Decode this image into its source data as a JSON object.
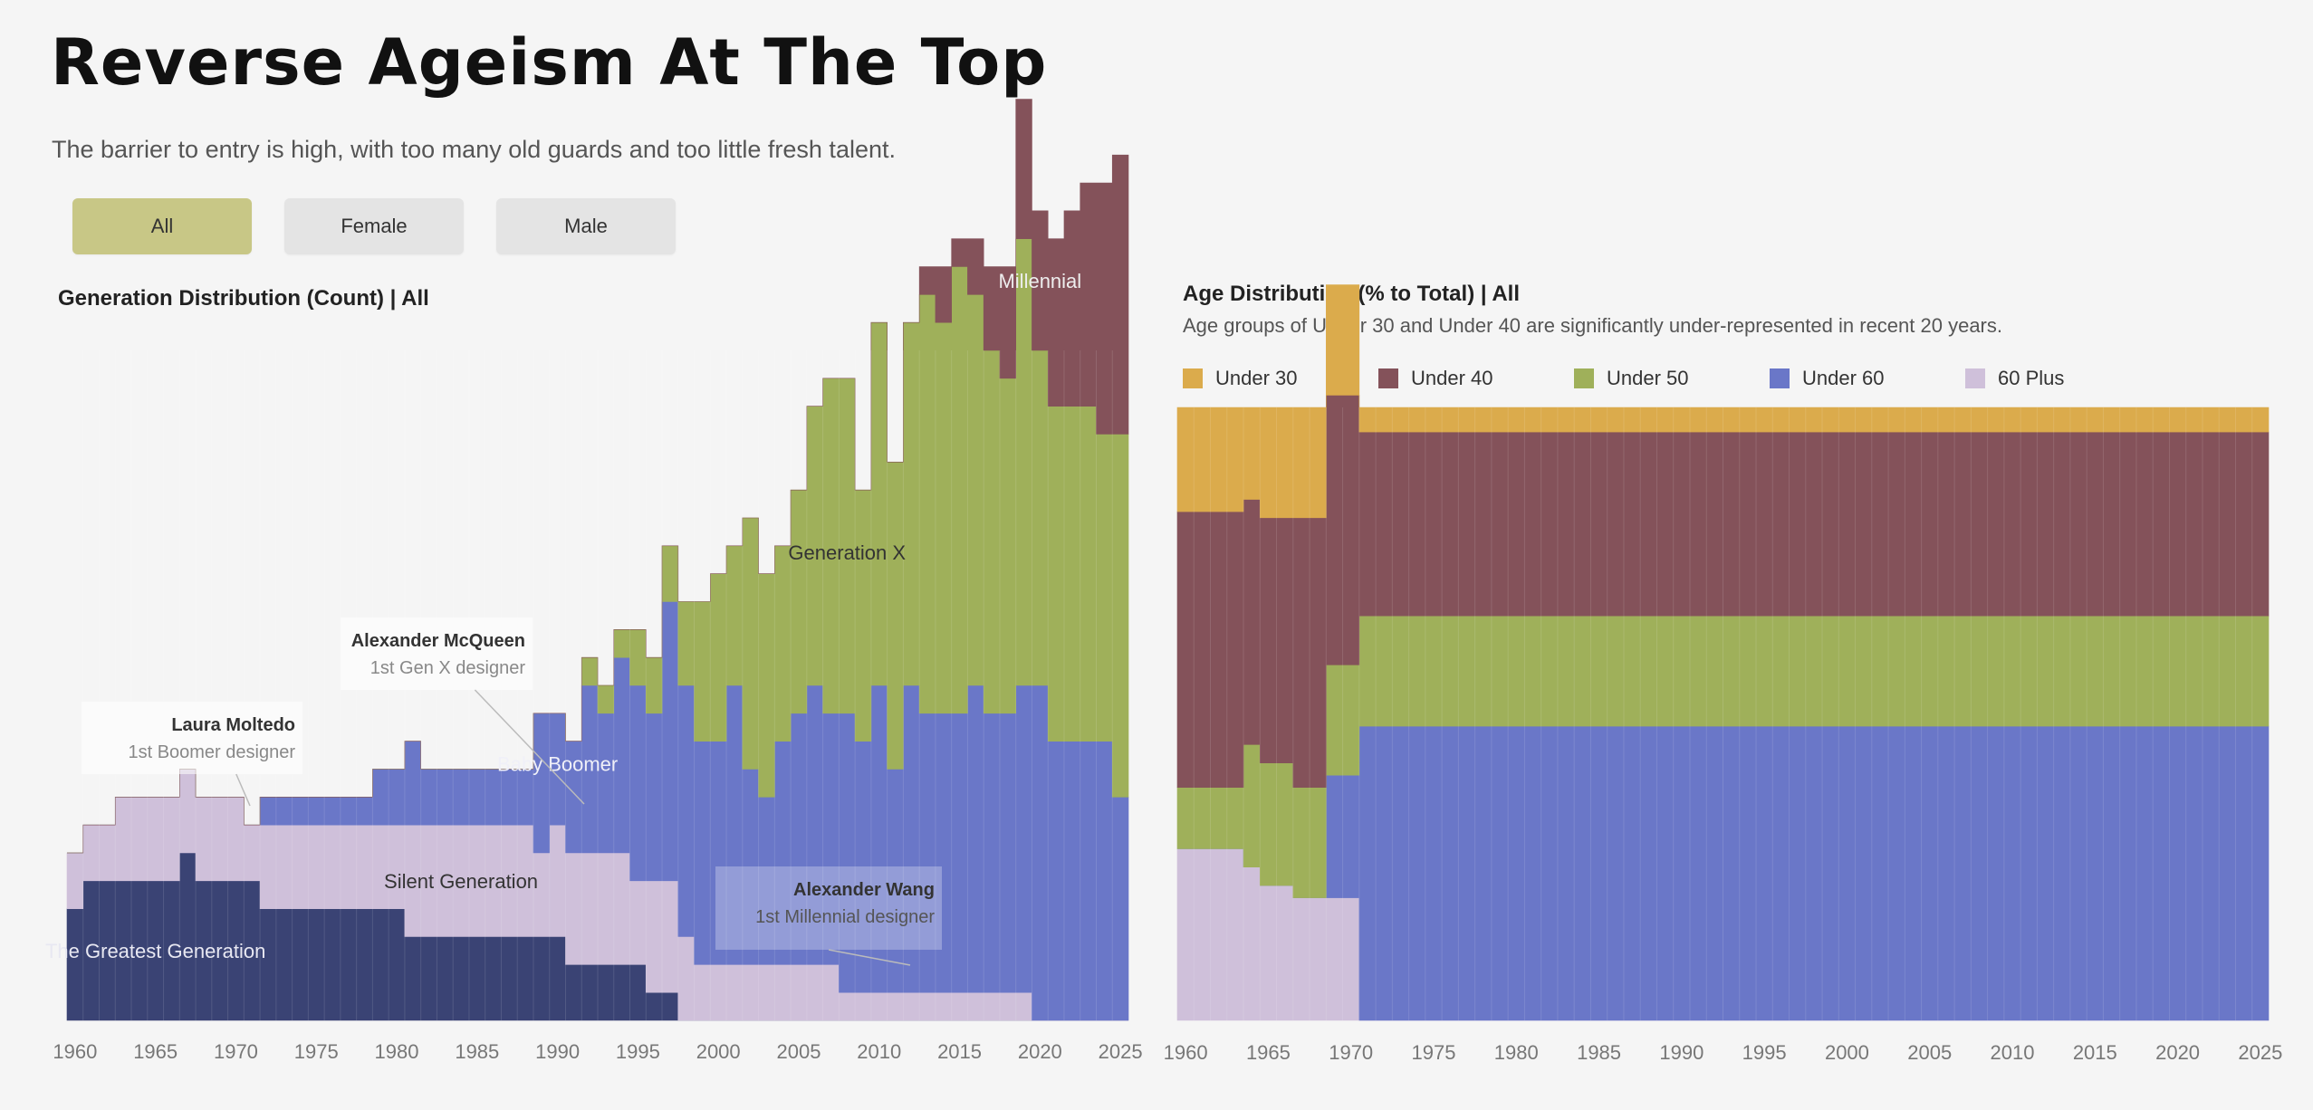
{
  "page": {
    "title": "Reverse Ageism At The Top",
    "subtitle": "The barrier to entry is high, with too many old guards and too little fresh talent."
  },
  "filters": {
    "items": [
      {
        "label": "All",
        "active": true
      },
      {
        "label": "Female",
        "active": false
      },
      {
        "label": "Male",
        "active": false
      }
    ]
  },
  "colors": {
    "greatest": "#3a4374",
    "silent": "#cfc0da",
    "boomer": "#6a77c8",
    "genx": "#9fb05a",
    "millennial": "#84525a",
    "under30": "#dbab4c",
    "under40": "#84525a",
    "under50": "#9fb05a",
    "under60": "#6a77c8",
    "plus60": "#cfc0da"
  },
  "chart_data": [
    {
      "type": "area",
      "title": "Generation Distribution (Count) | All",
      "xlabel": "",
      "ylabel": "",
      "xlim": [
        1960,
        2025
      ],
      "ylim": [
        0,
        24
      ],
      "x_ticks": [
        1960,
        1965,
        1970,
        1975,
        1980,
        1985,
        1990,
        1995,
        2000,
        2005,
        2010,
        2015,
        2020,
        2025
      ],
      "x": [
        1960,
        1961,
        1962,
        1963,
        1964,
        1965,
        1966,
        1967,
        1968,
        1969,
        1970,
        1971,
        1972,
        1973,
        1974,
        1975,
        1976,
        1977,
        1978,
        1979,
        1980,
        1981,
        1982,
        1983,
        1984,
        1985,
        1986,
        1987,
        1988,
        1989,
        1990,
        1991,
        1992,
        1993,
        1994,
        1995,
        1996,
        1997,
        1998,
        1999,
        2000,
        2001,
        2002,
        2003,
        2004,
        2005,
        2006,
        2007,
        2008,
        2009,
        2010,
        2011,
        2012,
        2013,
        2014,
        2015,
        2016,
        2017,
        2018,
        2019,
        2020,
        2021,
        2022,
        2023,
        2024,
        2025
      ],
      "series": [
        {
          "name": "The Greatest Generation",
          "color_key": "greatest",
          "values": [
            4,
            5,
            5,
            5,
            5,
            5,
            5,
            6,
            5,
            5,
            5,
            5,
            4,
            4,
            4,
            4,
            4,
            4,
            4,
            4,
            4,
            3,
            3,
            3,
            3,
            3,
            3,
            3,
            3,
            3,
            3,
            2,
            2,
            2,
            2,
            2,
            1,
            1,
            0,
            0,
            0,
            0,
            0,
            0,
            0,
            0,
            0,
            0,
            0,
            0,
            0,
            0,
            0,
            0,
            0,
            0,
            0,
            0,
            0,
            0,
            0,
            0,
            0,
            0,
            0,
            0
          ]
        },
        {
          "name": "Silent Generation",
          "color_key": "silent",
          "values": [
            2,
            2,
            2,
            3,
            3,
            3,
            3,
            3,
            3,
            3,
            3,
            2,
            3,
            3,
            3,
            3,
            3,
            3,
            3,
            3,
            3,
            4,
            4,
            4,
            4,
            4,
            4,
            4,
            4,
            3,
            4,
            4,
            4,
            4,
            4,
            3,
            4,
            4,
            3,
            2,
            2,
            2,
            2,
            2,
            2,
            2,
            2,
            2,
            1,
            1,
            1,
            1,
            1,
            1,
            1,
            1,
            1,
            1,
            1,
            1,
            0,
            0,
            0,
            0,
            0,
            0
          ]
        },
        {
          "name": "Baby Boomer",
          "color_key": "boomer",
          "values": [
            0,
            0,
            0,
            0,
            0,
            0,
            0,
            0,
            0,
            0,
            0,
            0,
            1,
            1,
            1,
            1,
            1,
            1,
            1,
            2,
            2,
            3,
            2,
            2,
            2,
            2,
            2,
            2,
            2,
            5,
            4,
            4,
            6,
            5,
            7,
            7,
            6,
            10,
            9,
            8,
            8,
            10,
            7,
            6,
            8,
            9,
            10,
            9,
            10,
            9,
            11,
            8,
            11,
            10,
            10,
            10,
            11,
            10,
            10,
            11,
            12,
            10,
            10,
            10,
            10,
            8
          ]
        },
        {
          "name": "Generation X",
          "color_key": "genx",
          "values": [
            0,
            0,
            0,
            0,
            0,
            0,
            0,
            0,
            0,
            0,
            0,
            0,
            0,
            0,
            0,
            0,
            0,
            0,
            0,
            0,
            0,
            0,
            0,
            0,
            0,
            0,
            0,
            0,
            0,
            0,
            0,
            0,
            1,
            1,
            1,
            2,
            2,
            2,
            3,
            5,
            6,
            5,
            9,
            8,
            7,
            8,
            10,
            12,
            12,
            9,
            13,
            11,
            13,
            15,
            14,
            16,
            14,
            13,
            12,
            16,
            12,
            12,
            12,
            12,
            11,
            13
          ]
        },
        {
          "name": "Millennial",
          "color_key": "millennial",
          "values": [
            0,
            0,
            0,
            0,
            0,
            0,
            0,
            0,
            0,
            0,
            0,
            0,
            0,
            0,
            0,
            0,
            0,
            0,
            0,
            0,
            0,
            0,
            0,
            0,
            0,
            0,
            0,
            0,
            0,
            0,
            0,
            0,
            0,
            0,
            0,
            0,
            0,
            0,
            0,
            0,
            0,
            0,
            0,
            0,
            0,
            0,
            0,
            0,
            0,
            0,
            0,
            0,
            0,
            1,
            2,
            1,
            2,
            3,
            4,
            5,
            5,
            6,
            7,
            8,
            9,
            10
          ]
        }
      ],
      "series_labels": [
        {
          "series": "The Greatest Generation",
          "text": "The Greatest Generation"
        },
        {
          "series": "Silent Generation",
          "text": "Silent Generation"
        },
        {
          "series": "Baby Boomer",
          "text": "Baby Boomer"
        },
        {
          "series": "Generation X",
          "text": "Generation X"
        },
        {
          "series": "Millennial",
          "text": "Millennial"
        }
      ],
      "annotations": [
        {
          "name": "Laura Moltedo",
          "note": "1st Boomer designer",
          "year": 1972
        },
        {
          "name": "Alexander McQueen",
          "note": "1st Gen X designer",
          "year": 1992
        },
        {
          "name": "Alexander Wang",
          "note": "1st Millennial designer",
          "year": 2012
        }
      ]
    },
    {
      "type": "area",
      "title": "Age Distribution (% to Total) | All",
      "subtitle": "Age groups of Under 30 and Under 40 are significantly under-represented in recent 20 years.",
      "xlabel": "",
      "ylabel": "",
      "xlim": [
        1960,
        2025
      ],
      "ylim": [
        0,
        100
      ],
      "stack": "percent",
      "legend": "top",
      "x_ticks": [
        1960,
        1965,
        1970,
        1975,
        1980,
        1985,
        1990,
        1995,
        2000,
        2005,
        2010,
        2015,
        2020,
        2025
      ],
      "x": [
        1960,
        1961,
        1962,
        1963,
        1964,
        1965,
        1966,
        1967,
        1968,
        1969,
        1970,
        1971,
        1972,
        1973,
        1974,
        1975,
        1976,
        1977,
        1978,
        1979,
        1980,
        1981,
        1982,
        1983,
        1984,
        1985,
        1986,
        1987,
        1988,
        1989,
        1990,
        1991,
        1992,
        1993,
        1994,
        1995,
        1996,
        1997,
        1998,
        1999,
        2000,
        2001,
        2002,
        2003,
        2004,
        2005,
        2006,
        2007,
        2008,
        2009,
        2010,
        2011,
        2012,
        2013,
        2014,
        2015,
        2016,
        2017,
        2018,
        2019,
        2020,
        2021,
        2022,
        2023,
        2024,
        2025
      ],
      "series": [
        {
          "name": "60 Plus",
          "color_key": "plus60",
          "values": [
            28,
            28,
            28,
            28,
            25,
            22,
            22,
            20,
            20,
            20,
            20,
            0,
            0,
            0,
            0,
            0,
            0,
            0,
            0,
            0,
            0,
            0,
            0,
            0,
            0,
            0,
            0,
            0,
            0,
            0,
            0,
            0,
            0,
            0,
            0,
            0,
            0,
            0,
            0,
            0,
            0,
            0,
            0,
            0,
            0,
            0,
            0,
            0,
            0,
            0,
            0,
            0,
            0,
            0,
            0,
            0,
            0,
            0,
            0,
            0,
            0,
            0,
            0,
            0,
            0,
            0
          ]
        },
        {
          "name": "Under 60",
          "color_key": "under60",
          "values": [
            0,
            0,
            0,
            0,
            0,
            0,
            0,
            0,
            0,
            20,
            20,
            48,
            48,
            48,
            48,
            48,
            48,
            48,
            48,
            48,
            48,
            48,
            48,
            48,
            48,
            48,
            48,
            48,
            48,
            48,
            48,
            48,
            48,
            48,
            48,
            48,
            48,
            48,
            48,
            48,
            48,
            48,
            48,
            48,
            48,
            48,
            48,
            48,
            48,
            48,
            48,
            48,
            48,
            48,
            48,
            48,
            48,
            48,
            48,
            48,
            48,
            48,
            48,
            48,
            48,
            48
          ]
        },
        {
          "name": "Under 50",
          "color_key": "under50",
          "values": [
            10,
            10,
            10,
            10,
            20,
            20,
            20,
            18,
            18,
            18,
            18,
            18,
            18,
            18,
            18,
            18,
            18,
            18,
            18,
            18,
            18,
            18,
            18,
            18,
            18,
            18,
            18,
            18,
            18,
            18,
            18,
            18,
            18,
            18,
            18,
            18,
            18,
            18,
            18,
            18,
            18,
            18,
            18,
            18,
            18,
            18,
            18,
            18,
            18,
            18,
            18,
            18,
            18,
            18,
            18,
            18,
            18,
            18,
            18,
            18,
            18,
            18,
            18,
            18,
            18,
            18
          ]
        },
        {
          "name": "Under 40",
          "color_key": "under40",
          "values": [
            45,
            45,
            45,
            45,
            40,
            40,
            40,
            44,
            44,
            44,
            44,
            30,
            30,
            30,
            30,
            30,
            30,
            30,
            30,
            30,
            30,
            30,
            30,
            30,
            30,
            30,
            30,
            30,
            30,
            30,
            30,
            30,
            30,
            30,
            30,
            30,
            30,
            30,
            30,
            30,
            30,
            30,
            30,
            30,
            30,
            30,
            30,
            30,
            30,
            30,
            30,
            30,
            30,
            30,
            30,
            30,
            30,
            30,
            30,
            30,
            30,
            30,
            30,
            30,
            30,
            30
          ]
        },
        {
          "name": "Under 30",
          "color_key": "under30",
          "values": [
            17,
            17,
            17,
            17,
            15,
            18,
            18,
            18,
            18,
            18,
            18,
            4,
            4,
            4,
            4,
            4,
            4,
            4,
            4,
            4,
            4,
            4,
            4,
            4,
            4,
            4,
            4,
            4,
            4,
            4,
            4,
            4,
            4,
            4,
            4,
            4,
            4,
            4,
            4,
            4,
            4,
            4,
            4,
            4,
            4,
            4,
            4,
            4,
            4,
            4,
            4,
            4,
            4,
            4,
            4,
            4,
            4,
            4,
            4,
            4,
            4,
            4,
            4,
            4,
            4,
            4
          ]
        }
      ]
    }
  ]
}
